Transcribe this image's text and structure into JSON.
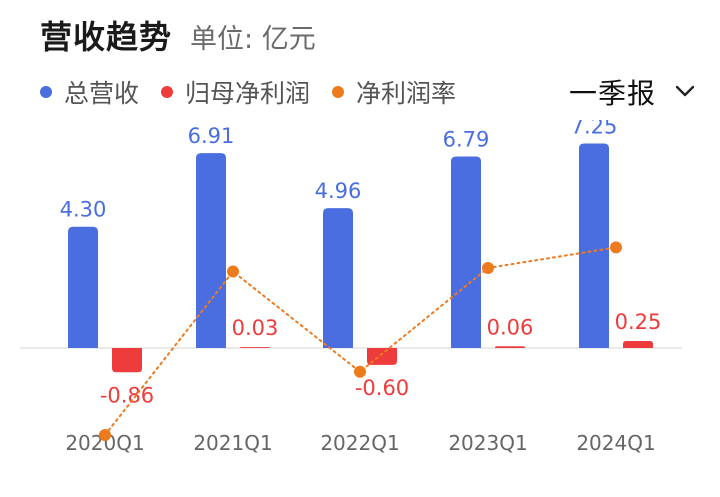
{
  "header": {
    "title": "营收趋势",
    "unit": "单位: 亿元"
  },
  "legend": [
    {
      "label": "总营收",
      "color": "#4a6ee0"
    },
    {
      "label": "归母净利润",
      "color": "#ee3b3b"
    },
    {
      "label": "净利润率",
      "color": "#ee7a1e"
    }
  ],
  "period_selector": {
    "label": "一季报",
    "icon": "chevron-down-icon"
  },
  "chart_data": {
    "type": "bar",
    "categories": [
      "2020Q1",
      "2021Q1",
      "2022Q1",
      "2023Q1",
      "2024Q1"
    ],
    "series": [
      {
        "name": "总营收",
        "type": "bar",
        "color": "#4a6ee0",
        "values": [
          4.3,
          6.91,
          4.96,
          6.79,
          7.25
        ],
        "labels": [
          "4.30",
          "6.91",
          "4.96",
          "6.79",
          "7.25"
        ]
      },
      {
        "name": "归母净利润",
        "type": "bar",
        "color": "#ee3b3b",
        "values": [
          -0.86,
          0.03,
          -0.6,
          0.06,
          0.25
        ],
        "labels": [
          "-0.86",
          "0.03",
          "-0.60",
          "0.06",
          "0.25"
        ]
      },
      {
        "name": "净利润率",
        "type": "line",
        "style": "dotted",
        "color": "#ee7a1e",
        "axis": "secondary",
        "values": [
          -20.0,
          0.43,
          -12.1,
          0.88,
          3.45
        ]
      }
    ],
    "ylim": [
      -1.5,
      8.5
    ],
    "y2lim": [
      -30,
      6
    ],
    "grid": false,
    "legend_position": "top-left"
  }
}
